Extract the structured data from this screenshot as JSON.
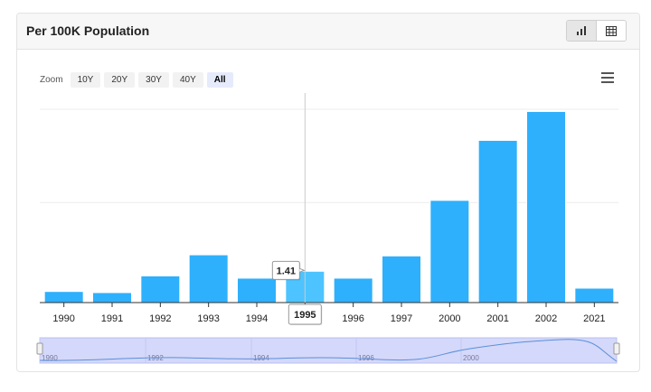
{
  "header": {
    "title": "Per 100K Population",
    "chart_view_icon": "bar-chart-icon",
    "table_view_icon": "table-icon"
  },
  "zoom": {
    "label": "Zoom",
    "options": [
      "10Y",
      "20Y",
      "30Y",
      "40Y",
      "All"
    ],
    "selected": "All"
  },
  "menu_icon": "hamburger-menu-icon",
  "colors": {
    "bar": "#2eb0fc",
    "bar_hover": "#4dc4ff",
    "navigator_fill": "#d4d8fa",
    "navigator_line": "#5b8fd8"
  },
  "chart_data": {
    "type": "bar",
    "categories": [
      "1990",
      "1991",
      "1992",
      "1993",
      "1994",
      "1995",
      "1996",
      "1997",
      "2000",
      "2001",
      "2002",
      "2021"
    ],
    "values": [
      0.5,
      0.45,
      1.2,
      2.15,
      1.1,
      1.41,
      1.1,
      2.1,
      4.6,
      7.3,
      8.6,
      0.65
    ],
    "ylim": [
      0,
      10
    ],
    "grid": true,
    "tooltip": {
      "category": "1995",
      "value": "1.41"
    },
    "navigator": {
      "labels": [
        "1990",
        "1992",
        "1994",
        "1996",
        "2000"
      ]
    }
  }
}
